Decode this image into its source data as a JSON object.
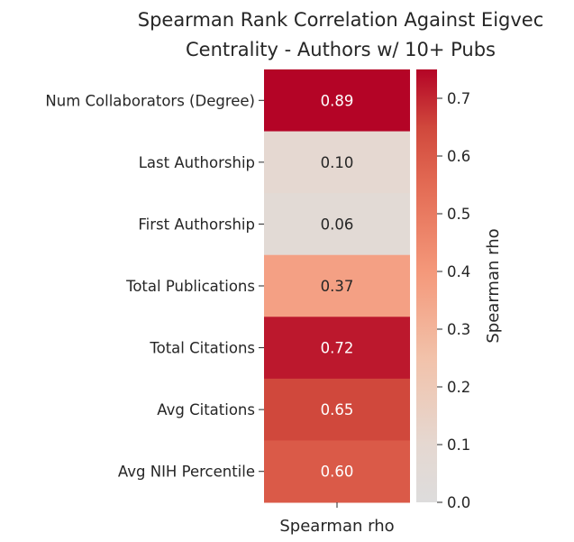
{
  "chart_data": {
    "type": "heatmap",
    "title_lines": [
      "Spearman Rank Correlation Against Eigvec",
      "Centrality - Authors w/ 10+ Pubs"
    ],
    "rows": [
      "Num Collaborators (Degree)",
      "Last Authorship",
      "First Authorship",
      "Total Publications",
      "Total Citations",
      "Avg Citations",
      "Avg NIH Percentile"
    ],
    "columns": [
      "Spearman rho"
    ],
    "values": [
      0.89,
      0.1,
      0.06,
      0.37,
      0.72,
      0.65,
      0.6
    ],
    "value_labels": [
      "0.89",
      "0.10",
      "0.06",
      "0.37",
      "0.72",
      "0.65",
      "0.60"
    ],
    "xlabel": "Spearman rho",
    "colorbar": {
      "label": "Spearman rho",
      "vmin": 0.0,
      "vmax": 0.75,
      "ticks": [
        0.0,
        0.1,
        0.2,
        0.3,
        0.4,
        0.5,
        0.6,
        0.7
      ],
      "tick_labels": [
        "0.0",
        "0.1",
        "0.2",
        "0.3",
        "0.4",
        "0.5",
        "0.6",
        "0.7"
      ],
      "colormap": "coolwarm"
    }
  }
}
